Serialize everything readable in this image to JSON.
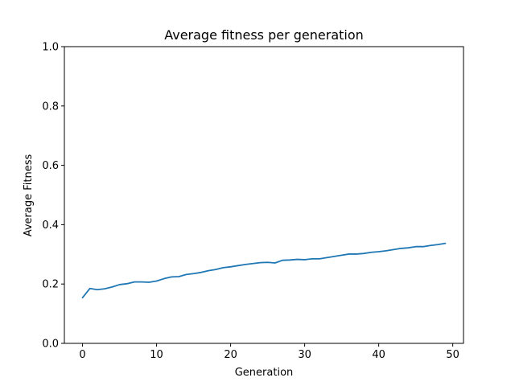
{
  "chart_data": {
    "type": "line",
    "title": "Average fitness per generation",
    "xlabel": "Generation",
    "ylabel": "Average Fitness",
    "xlim": [
      -2.45,
      51.45
    ],
    "ylim": [
      0.0,
      1.0
    ],
    "xticks": [
      0,
      10,
      20,
      30,
      40,
      50
    ],
    "yticks": [
      0.0,
      0.2,
      0.4,
      0.6,
      0.8,
      1.0
    ],
    "grid": false,
    "legend": "none",
    "series": [
      {
        "color": "#1f77b4",
        "x": [
          0,
          1,
          2,
          3,
          4,
          5,
          6,
          7,
          8,
          9,
          10,
          11,
          12,
          13,
          14,
          15,
          16,
          17,
          18,
          19,
          20,
          21,
          22,
          23,
          24,
          25,
          26,
          27,
          28,
          29,
          30,
          31,
          32,
          33,
          34,
          35,
          36,
          37,
          38,
          39,
          40,
          41,
          42,
          43,
          44,
          45,
          46,
          47,
          48,
          49
        ],
        "y": [
          0.154,
          0.185,
          0.181,
          0.184,
          0.19,
          0.198,
          0.201,
          0.207,
          0.207,
          0.206,
          0.21,
          0.218,
          0.224,
          0.225,
          0.232,
          0.235,
          0.239,
          0.245,
          0.249,
          0.255,
          0.258,
          0.262,
          0.266,
          0.269,
          0.272,
          0.273,
          0.271,
          0.28,
          0.281,
          0.283,
          0.282,
          0.285,
          0.285,
          0.289,
          0.293,
          0.297,
          0.301,
          0.301,
          0.303,
          0.307,
          0.309,
          0.312,
          0.316,
          0.32,
          0.322,
          0.326,
          0.326,
          0.33,
          0.333,
          0.337
        ]
      }
    ]
  }
}
